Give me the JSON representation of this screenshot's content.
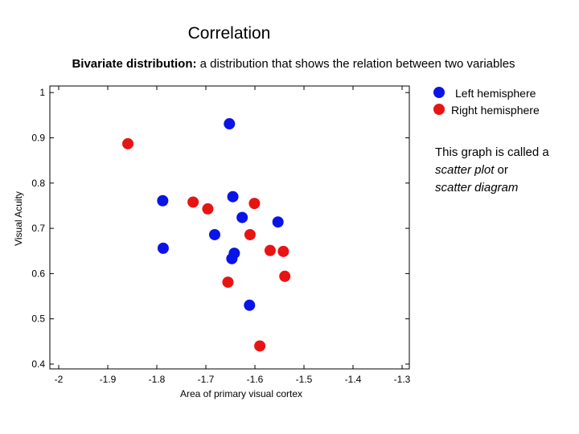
{
  "title": "Correlation",
  "subtitle": {
    "term": "Bivariate distribution:",
    "definition": "a distribution that shows the relation between two variables"
  },
  "note": {
    "line1": "This graph is called a",
    "term1": "scatter plot",
    "mid": " or",
    "term2": "scatter diagram"
  },
  "colors": {
    "left": "#0a14e6",
    "right": "#e81414"
  },
  "chart_data": {
    "type": "scatter",
    "title": "",
    "xlabel": "Area of primary visual cortex",
    "ylabel": "Visual Acuity",
    "xlim": [
      -2.0,
      -1.3
    ],
    "ylim": [
      0.4,
      1.02
    ],
    "x_ticks": [
      -2,
      -1.9,
      -1.8,
      -1.7,
      -1.6,
      -1.5,
      -1.4,
      -1.3
    ],
    "x_tick_labels": [
      "-2",
      "-1.9",
      "-1.8",
      "-1.7",
      "-1.6",
      "-1.5",
      "-1.4",
      "-1.3"
    ],
    "y_ticks": [
      0.4,
      0.5,
      0.6,
      0.7,
      0.8,
      0.9,
      1.0
    ],
    "y_tick_labels": [
      "0.4",
      "0.5",
      "0.6",
      "0.7",
      "0.8",
      "0.9",
      "1"
    ],
    "legend_position": "top-right",
    "series": [
      {
        "name": "Left hemisphere",
        "color": "#0a14e6",
        "points": [
          {
            "x": -1.652,
            "y": 0.931
          },
          {
            "x": -1.788,
            "y": 0.761
          },
          {
            "x": -1.645,
            "y": 0.77
          },
          {
            "x": -1.626,
            "y": 0.724
          },
          {
            "x": -1.553,
            "y": 0.714
          },
          {
            "x": -1.682,
            "y": 0.686
          },
          {
            "x": -1.787,
            "y": 0.656
          },
          {
            "x": -1.642,
            "y": 0.645
          },
          {
            "x": -1.647,
            "y": 0.633
          },
          {
            "x": -1.611,
            "y": 0.53
          }
        ]
      },
      {
        "name": "Right hemisphere",
        "color": "#e81414",
        "points": [
          {
            "x": -1.859,
            "y": 0.887
          },
          {
            "x": -1.726,
            "y": 0.758
          },
          {
            "x": -1.696,
            "y": 0.743
          },
          {
            "x": -1.601,
            "y": 0.755
          },
          {
            "x": -1.61,
            "y": 0.686
          },
          {
            "x": -1.569,
            "y": 0.651
          },
          {
            "x": -1.542,
            "y": 0.649
          },
          {
            "x": -1.539,
            "y": 0.594
          },
          {
            "x": -1.655,
            "y": 0.581
          },
          {
            "x": -1.59,
            "y": 0.44
          }
        ]
      }
    ]
  }
}
